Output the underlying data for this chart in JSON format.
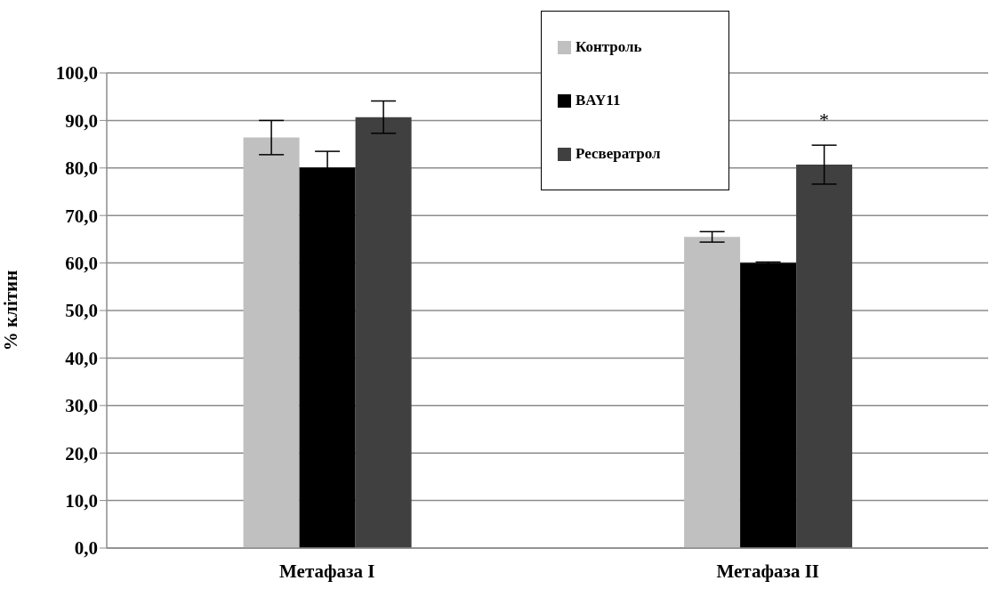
{
  "chart_data": {
    "type": "bar",
    "ylabel": "% клітин",
    "categories": [
      "Метафаза I",
      "Метафаза II"
    ],
    "series": [
      {
        "name": "Контроль",
        "color": "#c0c0c0",
        "values": [
          86.4,
          65.5
        ],
        "errors": [
          3.6,
          1.1
        ]
      },
      {
        "name": "BAY11",
        "color": "#000000",
        "values": [
          80.1,
          60.0
        ],
        "errors": [
          3.4,
          0.2
        ]
      },
      {
        "name": "Ресвератрол",
        "color": "#404040",
        "values": [
          90.7,
          80.7
        ],
        "errors": [
          3.4,
          4.1
        ]
      }
    ],
    "ylim": [
      0,
      100
    ],
    "yticks": [
      {
        "value": 0,
        "label": "0,0"
      },
      {
        "value": 10,
        "label": "10,0"
      },
      {
        "value": 20,
        "label": "20,0"
      },
      {
        "value": 30,
        "label": "30,0"
      },
      {
        "value": 40,
        "label": "40,0"
      },
      {
        "value": 50,
        "label": "50,0"
      },
      {
        "value": 60,
        "label": "60,0"
      },
      {
        "value": 70,
        "label": "70,0"
      },
      {
        "value": 80,
        "label": "80,0"
      },
      {
        "value": 90,
        "label": "90,0"
      },
      {
        "value": 100,
        "label": "100,0"
      }
    ],
    "grid": "y",
    "legend": "top",
    "annotations": [
      "*"
    ]
  }
}
